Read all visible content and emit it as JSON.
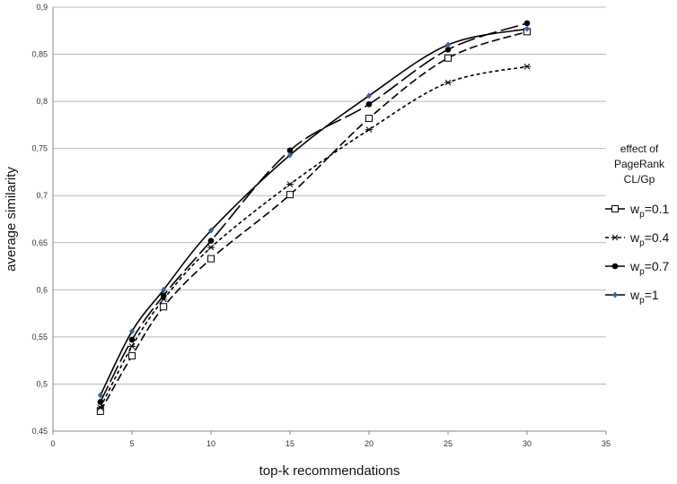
{
  "chart_data": {
    "type": "line",
    "xlabel": "top-k recommendations",
    "ylabel": "average similarity",
    "xlim": [
      0,
      35
    ],
    "ylim": [
      0.45,
      0.9
    ],
    "x_ticks": [
      "0",
      "5",
      "10",
      "15",
      "20",
      "25",
      "30",
      "35"
    ],
    "y_ticks": [
      "0,45",
      "0,5",
      "0,55",
      "0,6",
      "0,65",
      "0,7",
      "0,75",
      "0,8",
      "0,85",
      "0,9"
    ],
    "grid": "horizontal",
    "legend": {
      "placement": "right",
      "title_lines": [
        "effect of",
        "PageRank",
        "CL/Gp"
      ]
    },
    "x": [
      3,
      5,
      7,
      10,
      15,
      20,
      25,
      30
    ],
    "series": [
      {
        "name": "wp=0.1",
        "label_main": "w",
        "label_sub": "p",
        "label_tail": "=0.1",
        "marker": "square-open",
        "dash": "dash",
        "color": "#000000",
        "values": [
          0.471,
          0.53,
          0.582,
          0.633,
          0.701,
          0.782,
          0.846,
          0.874
        ]
      },
      {
        "name": "wp=0.4",
        "label_main": "w",
        "label_sub": "p",
        "label_tail": "=0.4",
        "marker": "asterisk",
        "dash": "short-dash",
        "color": "#000000",
        "values": [
          0.475,
          0.54,
          0.59,
          0.645,
          0.712,
          0.77,
          0.82,
          0.837
        ]
      },
      {
        "name": "wp=0.7",
        "label_main": "w",
        "label_sub": "p",
        "label_tail": "=0.7",
        "marker": "circle-filled",
        "dash": "long-dash",
        "color": "#000000",
        "values": [
          0.481,
          0.547,
          0.594,
          0.652,
          0.748,
          0.797,
          0.855,
          0.883
        ]
      },
      {
        "name": "wp=1",
        "label_main": "w",
        "label_sub": "p",
        "label_tail": "=1",
        "marker": "diamond-blue",
        "dash": "solid",
        "color": "#000000",
        "marker_color": "#3a5ea8",
        "values": [
          0.488,
          0.556,
          0.6,
          0.663,
          0.743,
          0.806,
          0.86,
          0.877
        ]
      }
    ]
  }
}
